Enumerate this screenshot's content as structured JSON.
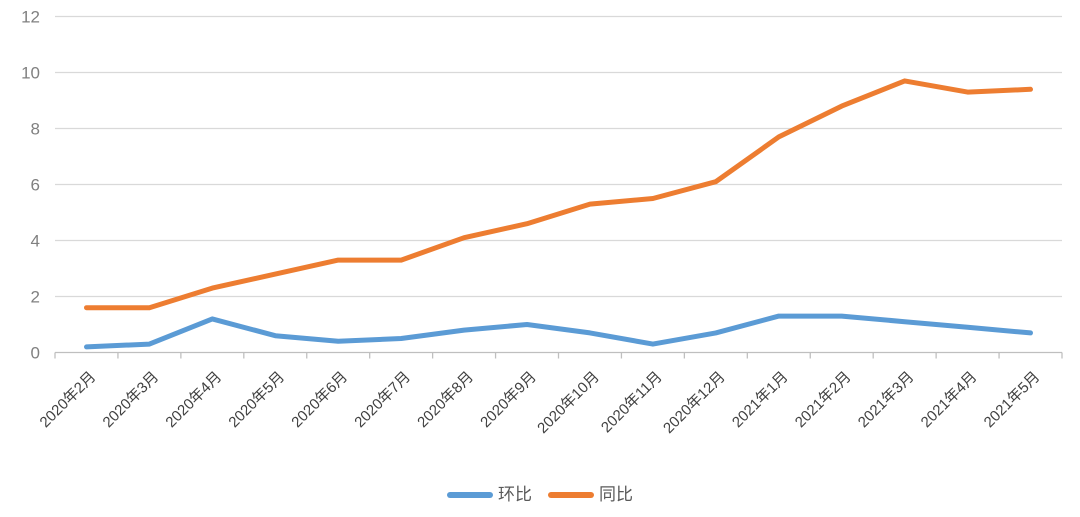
{
  "chart_data": {
    "type": "line",
    "title": "",
    "xlabel": "",
    "ylabel": "",
    "categories": [
      "2020年2月",
      "2020年3月",
      "2020年4月",
      "2020年5月",
      "2020年6月",
      "2020年7月",
      "2020年8月",
      "2020年9月",
      "2020年10月",
      "2020年11月",
      "2020年12月",
      "2021年1月",
      "2021年2月",
      "2021年3月",
      "2021年4月",
      "2021年5月"
    ],
    "series": [
      {
        "name": "环比",
        "color": "#5B9BD5",
        "values": [
          0.2,
          0.3,
          1.2,
          0.6,
          0.4,
          0.5,
          0.8,
          1.0,
          0.7,
          0.3,
          0.7,
          1.3,
          1.3,
          1.1,
          0.9,
          0.7
        ]
      },
      {
        "name": "同比",
        "color": "#ED7D31",
        "values": [
          1.6,
          1.6,
          2.3,
          2.8,
          3.3,
          3.3,
          4.1,
          4.6,
          5.3,
          5.5,
          6.1,
          7.7,
          8.8,
          9.7,
          9.3,
          9.4
        ]
      }
    ],
    "ylim": [
      0,
      12
    ],
    "yticks": [
      0,
      2,
      4,
      6,
      8,
      10,
      12
    ],
    "grid": "horizontal",
    "x_label_rotation": -45,
    "legend_position": "bottom-center"
  },
  "colors": {
    "background": "#FFFFFF",
    "gridline": "#D9D9D9",
    "axis_line": "#BFBFBF",
    "tick_mark": "#BFBFBF",
    "y_tick_label": "#808080",
    "x_tick_label": "#404040",
    "legend_text": "#595959"
  }
}
